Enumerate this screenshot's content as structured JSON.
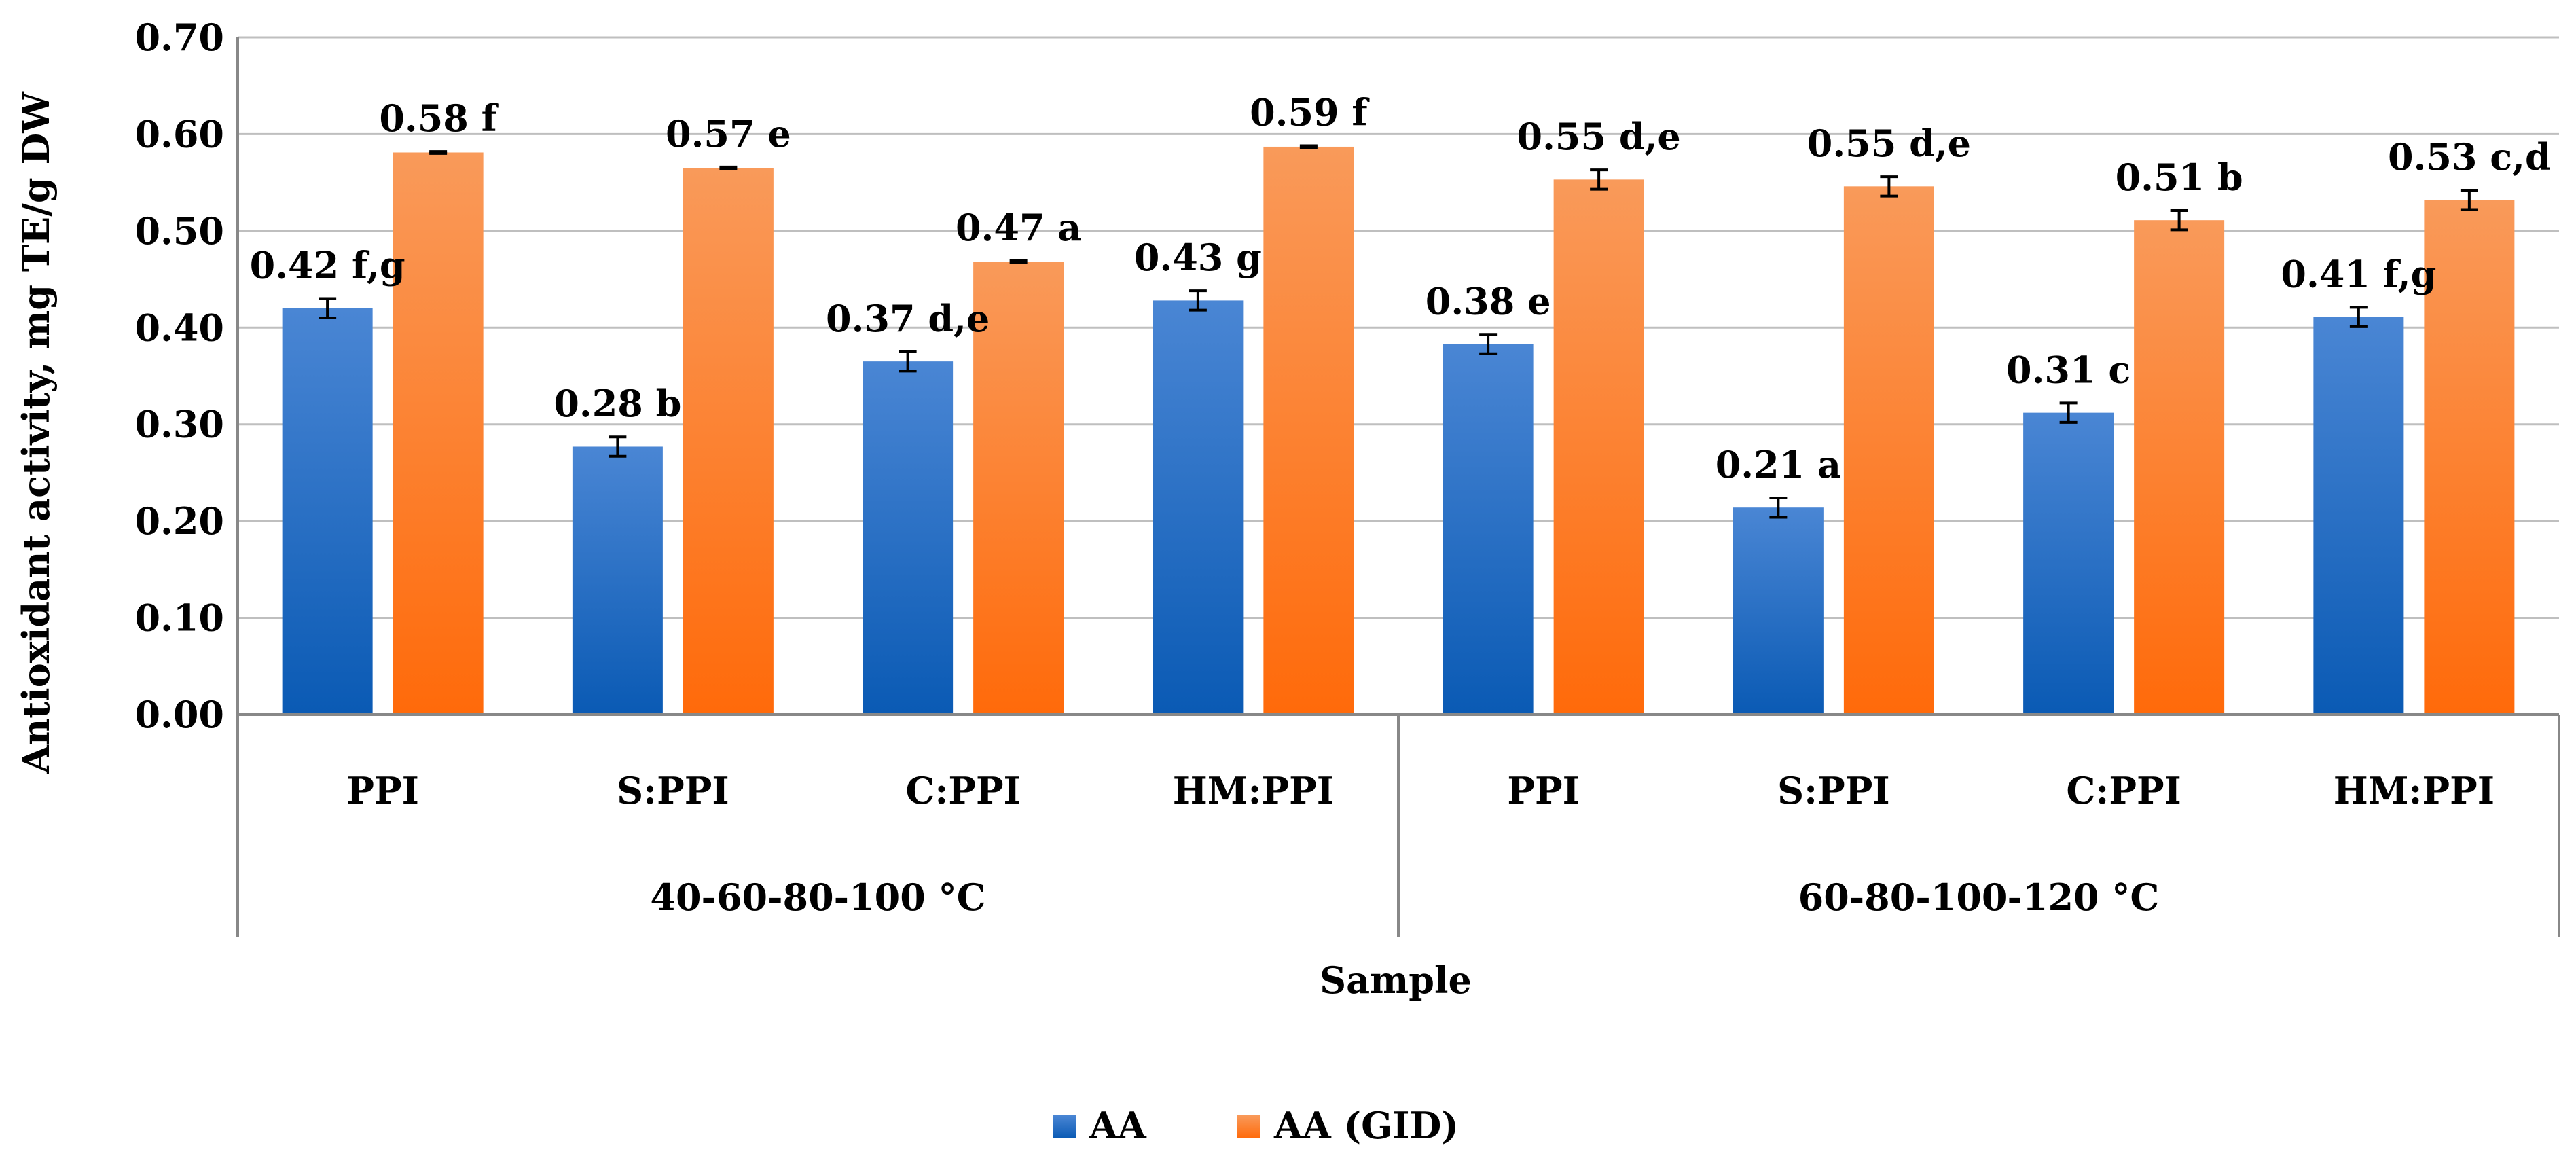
{
  "chart_data": {
    "type": "bar",
    "title": "",
    "ylabel": "Antioxidant activity, mg TE/g DW",
    "xlabel": "Sample",
    "ylim": [
      0,
      0.7
    ],
    "ytick_step": 0.1,
    "yticks": [
      "0.00",
      "0.10",
      "0.20",
      "0.30",
      "0.40",
      "0.50",
      "0.60",
      "0.70"
    ],
    "grid": true,
    "legend_position": "bottom-center",
    "groups": [
      {
        "label": "40-60-80-100 °C",
        "categories": [
          "PPI",
          "S:PPI",
          "C:PPI",
          "HM:PPI"
        ]
      },
      {
        "label": "60-80-100-120 °C",
        "categories": [
          "PPI",
          "S:PPI",
          "C:PPI",
          "HM:PPI"
        ]
      }
    ],
    "series": [
      {
        "name": "AA",
        "color_top": "#4a86d4",
        "color_bottom": "#0a5ab4",
        "values": [
          0.42,
          0.277,
          0.365,
          0.428,
          0.383,
          0.214,
          0.312,
          0.411
        ],
        "errors": [
          0.01,
          0.01,
          0.01,
          0.01,
          0.01,
          0.01,
          0.01,
          0.01
        ],
        "labels": [
          "0.42 f,g",
          "0.28 b",
          "0.37 d,e",
          "0.43 g",
          "0.38 e",
          "0.21 a",
          "0.31 c",
          "0.41 f,g"
        ]
      },
      {
        "name": "AA (GID)",
        "color_top": "#f99a5a",
        "color_bottom": "#ff6a0a",
        "values": [
          0.581,
          0.565,
          0.468,
          0.587,
          0.553,
          0.546,
          0.511,
          0.532
        ],
        "errors": [
          0.001,
          0.001,
          0.001,
          0.001,
          0.01,
          0.01,
          0.01,
          0.01
        ],
        "labels": [
          "0.58 f",
          "0.57 e",
          "0.47 a",
          "0.59 f",
          "0.55 d,e",
          "0.55 d,e",
          "0.51 b",
          "0.53 c,d"
        ]
      }
    ]
  }
}
